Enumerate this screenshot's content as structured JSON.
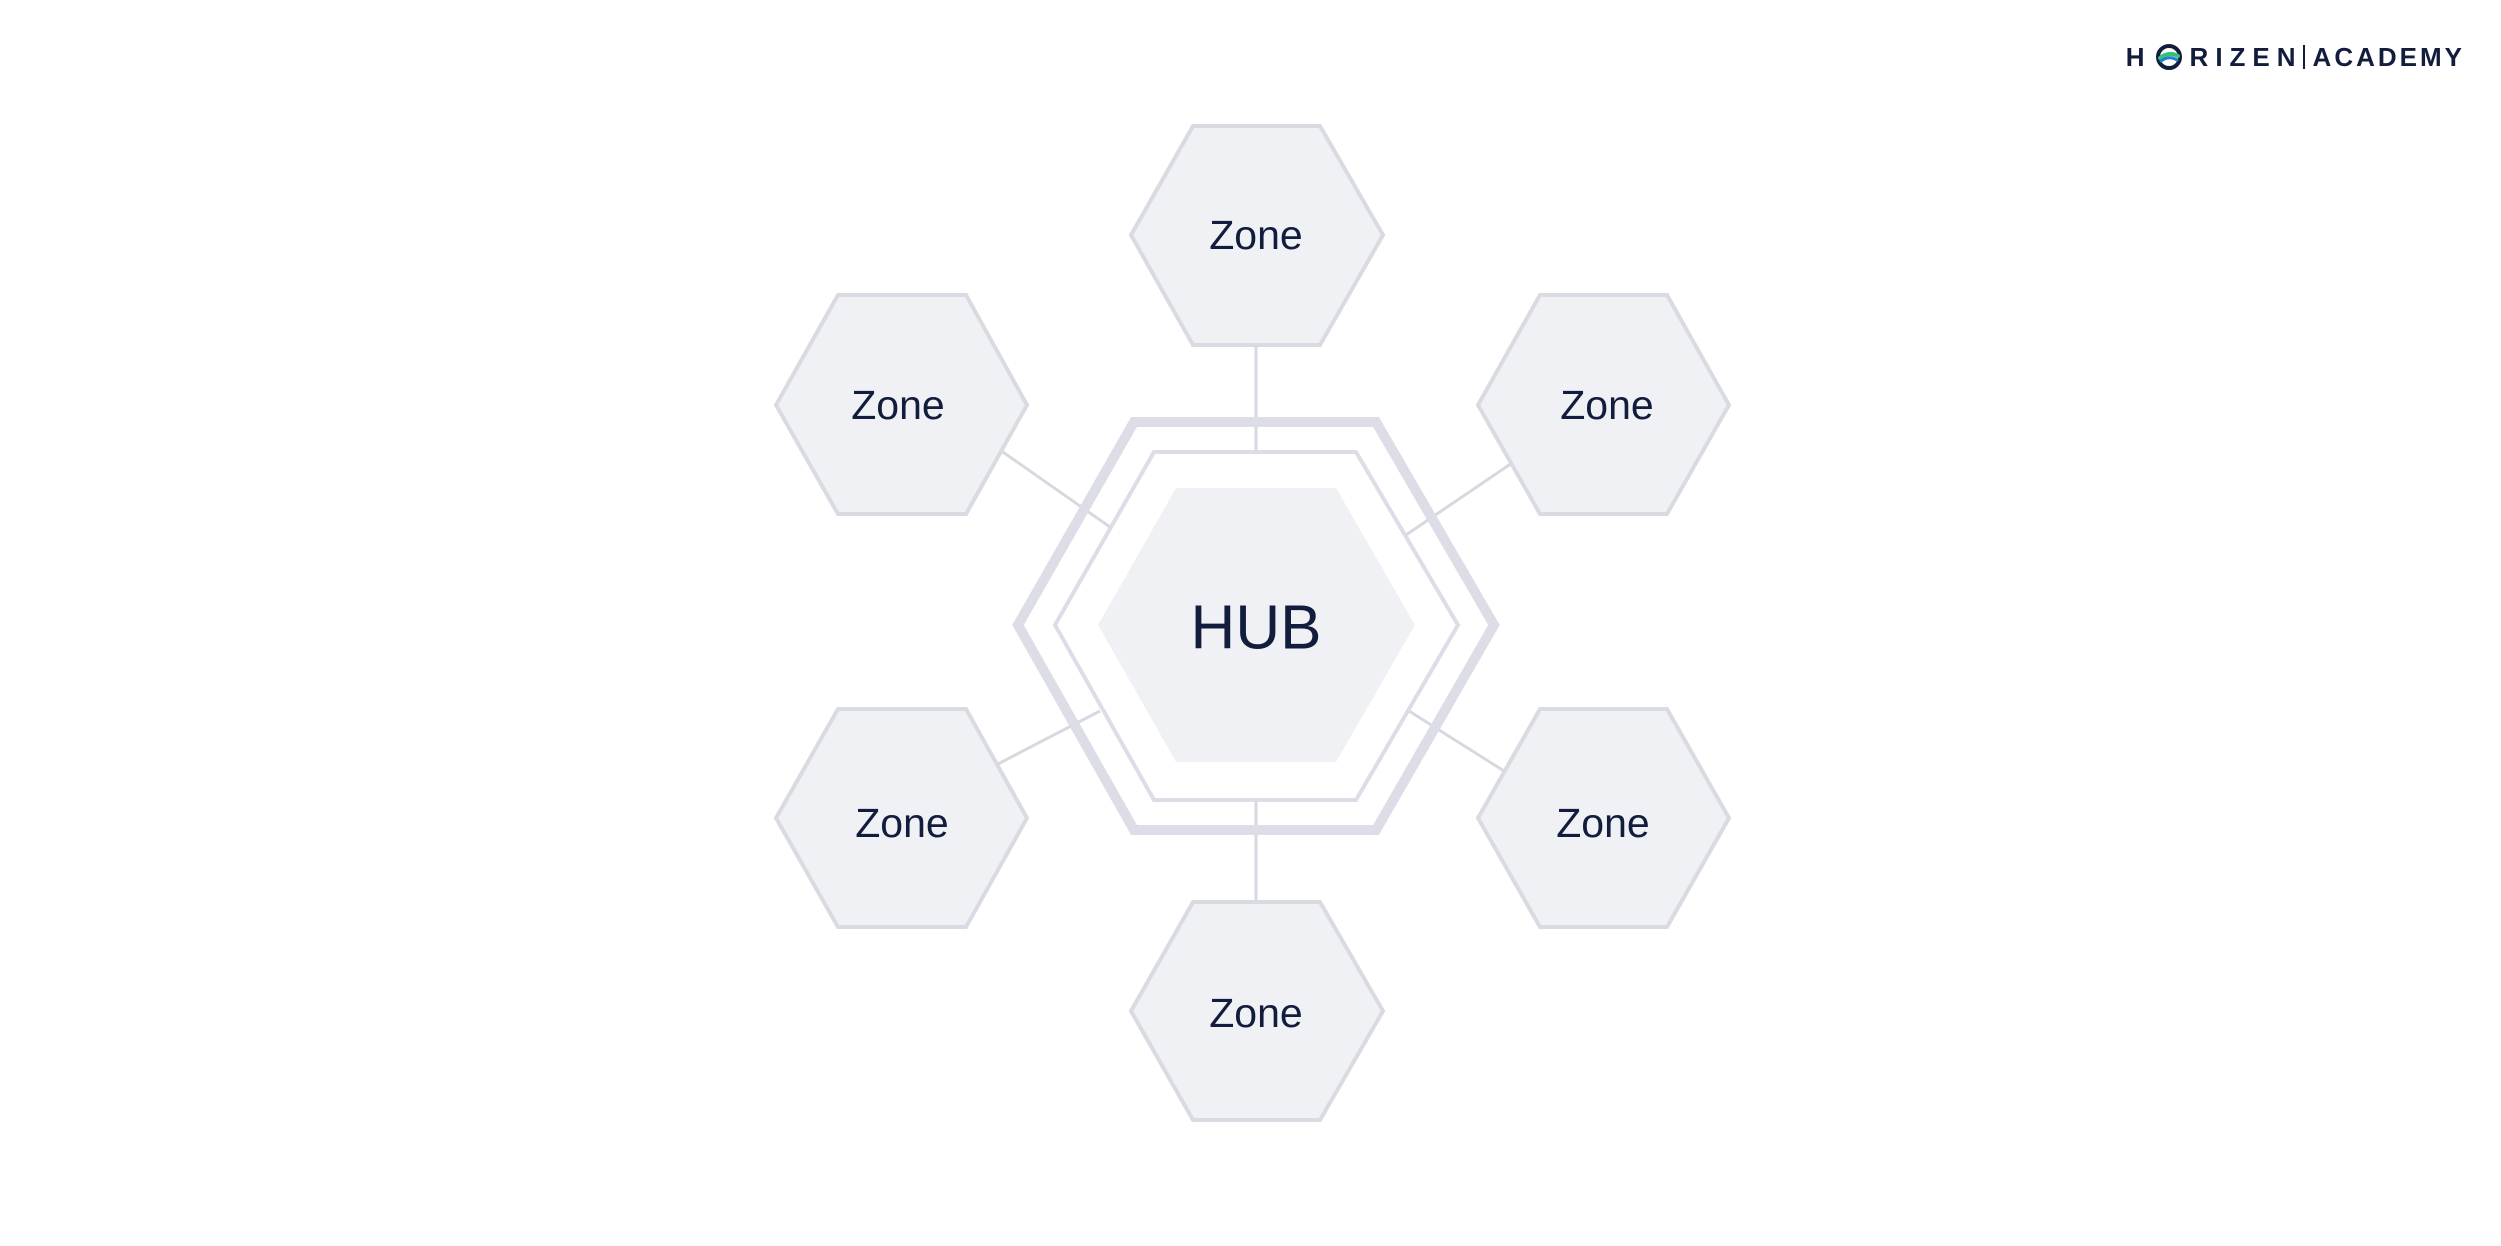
{
  "logo": {
    "brand_letter_h": "H",
    "brand_rest": "RIZEN",
    "brand_o_icon": "horizen-o-logo-icon",
    "sub": "ACADEMY"
  },
  "diagram": {
    "hub_label": "HUB",
    "zones": [
      {
        "label": "Zone",
        "position": "top"
      },
      {
        "label": "Zone",
        "position": "upper-right"
      },
      {
        "label": "Zone",
        "position": "lower-right"
      },
      {
        "label": "Zone",
        "position": "bottom"
      },
      {
        "label": "Zone",
        "position": "lower-left"
      },
      {
        "label": "Zone",
        "position": "upper-left"
      }
    ]
  },
  "colors": {
    "text": "#121c3c",
    "hex_fill": "#f0f1f4",
    "hex_stroke": "#d9dae2",
    "logo_blue": "#1f7fd0",
    "logo_green": "#36c07a"
  }
}
